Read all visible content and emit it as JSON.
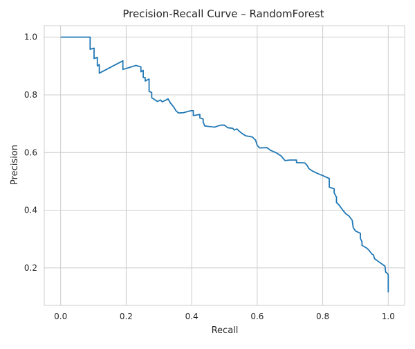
{
  "chart_data": {
    "type": "line",
    "title": "Precision-Recall Curve – RandomForest",
    "xlabel": "Recall",
    "ylabel": "Precision",
    "xlim": [
      -0.05,
      1.05
    ],
    "ylim": [
      0.07,
      1.04
    ],
    "xticks": [
      0.0,
      0.2,
      0.4,
      0.6,
      0.8,
      1.0
    ],
    "xtick_labels": [
      "0.0",
      "0.2",
      "0.4",
      "0.6",
      "0.8",
      "1.0"
    ],
    "yticks": [
      0.2,
      0.4,
      0.6,
      0.8,
      1.0
    ],
    "ytick_labels": [
      "0.2",
      "0.4",
      "0.6",
      "0.8",
      "1.0"
    ],
    "grid": true,
    "legend": "none",
    "series": [
      {
        "color": "#1f77b4",
        "step": true,
        "points": [
          [
            0.0,
            1.0
          ],
          [
            0.09,
            1.0
          ],
          [
            0.09,
            0.958
          ],
          [
            0.102,
            0.962
          ],
          [
            0.102,
            0.926
          ],
          [
            0.112,
            0.93
          ],
          [
            0.112,
            0.9
          ],
          [
            0.118,
            0.905
          ],
          [
            0.118,
            0.875
          ],
          [
            0.19,
            0.918
          ],
          [
            0.19,
            0.888
          ],
          [
            0.23,
            0.902
          ],
          [
            0.245,
            0.897
          ],
          [
            0.245,
            0.88
          ],
          [
            0.252,
            0.885
          ],
          [
            0.252,
            0.86
          ],
          [
            0.258,
            0.86
          ],
          [
            0.258,
            0.848
          ],
          [
            0.27,
            0.855
          ],
          [
            0.27,
            0.812
          ],
          [
            0.278,
            0.808
          ],
          [
            0.278,
            0.79
          ],
          [
            0.285,
            0.785
          ],
          [
            0.295,
            0.777
          ],
          [
            0.305,
            0.782
          ],
          [
            0.31,
            0.776
          ],
          [
            0.318,
            0.78
          ],
          [
            0.328,
            0.786
          ],
          [
            0.335,
            0.772
          ],
          [
            0.345,
            0.758
          ],
          [
            0.352,
            0.745
          ],
          [
            0.36,
            0.737
          ],
          [
            0.375,
            0.738
          ],
          [
            0.39,
            0.743
          ],
          [
            0.398,
            0.745
          ],
          [
            0.405,
            0.745
          ],
          [
            0.405,
            0.728
          ],
          [
            0.425,
            0.732
          ],
          [
            0.425,
            0.72
          ],
          [
            0.435,
            0.716
          ],
          [
            0.435,
            0.705
          ],
          [
            0.44,
            0.692
          ],
          [
            0.455,
            0.69
          ],
          [
            0.47,
            0.688
          ],
          [
            0.48,
            0.692
          ],
          [
            0.49,
            0.695
          ],
          [
            0.5,
            0.695
          ],
          [
            0.51,
            0.686
          ],
          [
            0.525,
            0.684
          ],
          [
            0.53,
            0.678
          ],
          [
            0.538,
            0.682
          ],
          [
            0.545,
            0.674
          ],
          [
            0.555,
            0.665
          ],
          [
            0.565,
            0.658
          ],
          [
            0.585,
            0.654
          ],
          [
            0.595,
            0.643
          ],
          [
            0.6,
            0.625
          ],
          [
            0.607,
            0.616
          ],
          [
            0.63,
            0.617
          ],
          [
            0.64,
            0.608
          ],
          [
            0.66,
            0.598
          ],
          [
            0.673,
            0.588
          ],
          [
            0.685,
            0.572
          ],
          [
            0.7,
            0.574
          ],
          [
            0.72,
            0.574
          ],
          [
            0.72,
            0.565
          ],
          [
            0.745,
            0.564
          ],
          [
            0.752,
            0.556
          ],
          [
            0.758,
            0.544
          ],
          [
            0.77,
            0.535
          ],
          [
            0.785,
            0.527
          ],
          [
            0.8,
            0.52
          ],
          [
            0.82,
            0.51
          ],
          [
            0.82,
            0.48
          ],
          [
            0.835,
            0.474
          ],
          [
            0.835,
            0.46
          ],
          [
            0.842,
            0.445
          ],
          [
            0.842,
            0.427
          ],
          [
            0.85,
            0.418
          ],
          [
            0.86,
            0.402
          ],
          [
            0.87,
            0.388
          ],
          [
            0.88,
            0.38
          ],
          [
            0.89,
            0.365
          ],
          [
            0.893,
            0.34
          ],
          [
            0.9,
            0.328
          ],
          [
            0.915,
            0.32
          ],
          [
            0.915,
            0.302
          ],
          [
            0.92,
            0.29
          ],
          [
            0.92,
            0.278
          ],
          [
            0.935,
            0.268
          ],
          [
            0.942,
            0.26
          ],
          [
            0.95,
            0.248
          ],
          [
            0.955,
            0.245
          ],
          [
            0.958,
            0.232
          ],
          [
            0.97,
            0.222
          ],
          [
            0.99,
            0.206
          ],
          [
            0.992,
            0.186
          ],
          [
            0.998,
            0.18
          ],
          [
            1.0,
            0.176
          ],
          [
            1.0,
            0.115
          ]
        ]
      }
    ]
  }
}
